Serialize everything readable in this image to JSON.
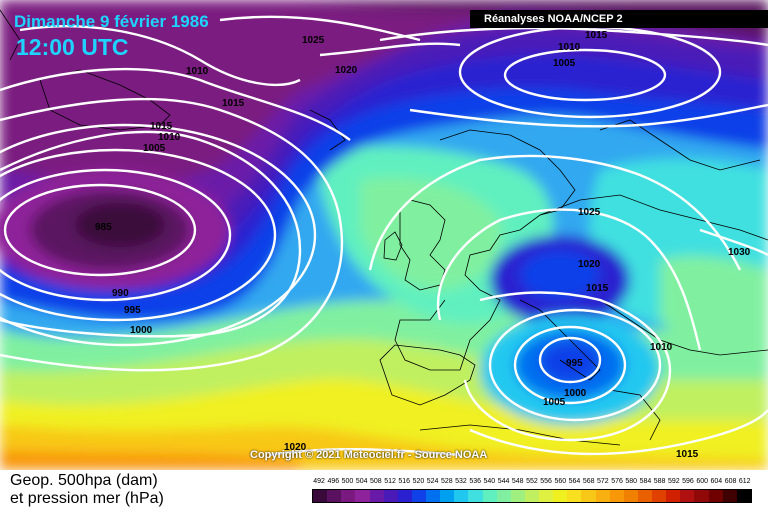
{
  "header": {
    "date": "Dimanche 9 février 1986",
    "time": "12:00 UTC",
    "source": "Réanalyses NOAA/NCEP 2"
  },
  "copyright": "Copyright © 2021 Meteociel.fr - Source NOAA",
  "legend": {
    "line1": "Geop. 500hpa (dam)",
    "line2": "et pression mer (hPa)",
    "scale_values": [
      "492",
      "496",
      "500",
      "504",
      "508",
      "512",
      "516",
      "520",
      "524",
      "528",
      "532",
      "536",
      "540",
      "544",
      "548",
      "552",
      "556",
      "560",
      "564",
      "568",
      "572",
      "576",
      "580",
      "584",
      "588",
      "592",
      "596",
      "600",
      "604",
      "608",
      "612"
    ],
    "scale_colors": [
      "#3a0a3a",
      "#5a1260",
      "#7a1a80",
      "#8e229a",
      "#6a1aa8",
      "#4a1ab8",
      "#2a20d0",
      "#1040e8",
      "#0070f0",
      "#00a0f0",
      "#20c8f0",
      "#40e0e0",
      "#60f0c0",
      "#80f0a0",
      "#a0f080",
      "#c0f060",
      "#e0f040",
      "#f0f020",
      "#f8e020",
      "#f8c818",
      "#f8b010",
      "#f89808",
      "#f08000",
      "#e86000",
      "#e04000",
      "#d02000",
      "#b01010",
      "#900808",
      "#700000",
      "#400000",
      "#000000"
    ]
  },
  "isobars": [
    "1025",
    "1015",
    "1010",
    "1005",
    "1010",
    "1015",
    "1020",
    "1015",
    "1010",
    "1005",
    "985",
    "990",
    "995",
    "1000",
    "1025",
    "1020",
    "1015",
    "1030",
    "1010",
    "995",
    "1000",
    "1005",
    "1020",
    "1015"
  ],
  "colors": {
    "title": "#1fd3ff",
    "isobar": "#ffffff"
  }
}
